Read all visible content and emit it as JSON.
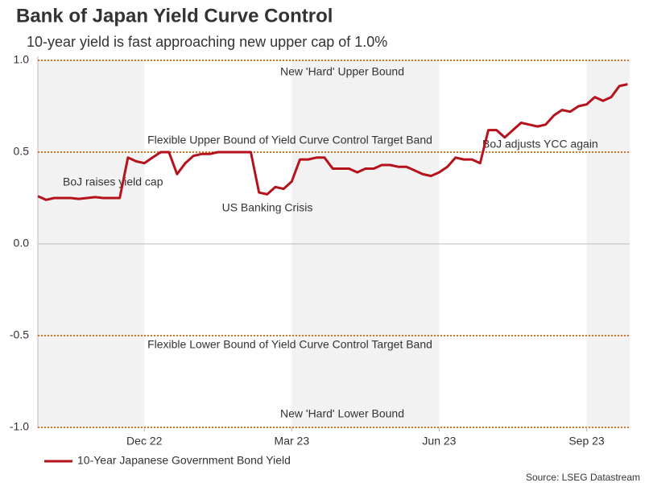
{
  "chart_data": {
    "type": "line",
    "title": "Bank of Japan Yield Curve Control",
    "subtitle": "10-year yield is fast approaching new upper cap of 1.0%",
    "source": "Source: LSEG Datastream",
    "categories": [
      null,
      null,
      null,
      null,
      null,
      null,
      null,
      null,
      null,
      null,
      null,
      null,
      null,
      "Dec 22",
      null,
      null,
      null,
      null,
      null,
      null,
      null,
      null,
      null,
      null,
      null,
      null,
      null,
      null,
      null,
      null,
      null,
      "Mar 23",
      null,
      null,
      null,
      null,
      null,
      null,
      null,
      null,
      null,
      null,
      null,
      null,
      null,
      null,
      null,
      null,
      null,
      "Jun 23",
      null,
      null,
      null,
      null,
      null,
      null,
      null,
      null,
      null,
      null,
      null,
      null,
      null,
      null,
      null,
      null,
      null,
      "Sep 23",
      null,
      null,
      null,
      null,
      null
    ],
    "series": [
      {
        "name": "10-Year Japanese Government Bond Yield",
        "color": "#b5121b",
        "values": [
          0.26,
          0.24,
          0.25,
          0.25,
          0.25,
          0.245,
          0.25,
          0.255,
          0.25,
          0.25,
          0.25,
          0.47,
          0.45,
          0.44,
          0.47,
          0.5,
          0.5,
          0.38,
          0.44,
          0.48,
          0.49,
          0.49,
          0.5,
          0.5,
          0.5,
          0.5,
          0.5,
          0.28,
          0.27,
          0.31,
          0.3,
          0.34,
          0.46,
          0.46,
          0.47,
          0.47,
          0.41,
          0.41,
          0.41,
          0.39,
          0.41,
          0.41,
          0.43,
          0.43,
          0.42,
          0.42,
          0.4,
          0.38,
          0.37,
          0.39,
          0.42,
          0.47,
          0.46,
          0.46,
          0.44,
          0.62,
          0.62,
          0.58,
          0.62,
          0.66,
          0.65,
          0.64,
          0.65,
          0.7,
          0.73,
          0.72,
          0.75,
          0.76,
          0.8,
          0.78,
          0.8,
          0.86,
          0.87
        ]
      }
    ],
    "ylim": [
      -1,
      1
    ],
    "yticks": [
      {
        "value": -1,
        "label": "-1.0"
      },
      -0.5,
      {
        "value": 0,
        "label": "0.0"
      },
      0.5,
      {
        "value": 1,
        "label": "1.0"
      }
    ],
    "reference_lines": [
      {
        "value": 1,
        "label": "New 'Hard' Upper Bound",
        "color": "#e07020"
      },
      {
        "value": 0.5,
        "label": "Flexible Upper Bound of Yield Curve Control Target Band",
        "color": "#e07020"
      },
      {
        "value": -0.5,
        "label": "Flexible Lower Bound of Yield Curve Control Target Band",
        "color": "#e07020"
      },
      {
        "value": -1,
        "label": "New 'Hard' Lower Bound",
        "color": "#e07020"
      }
    ],
    "annotations": [
      "BoJ raises yield cap",
      "US Banking Crisis",
      "BoJ adjusts YCC again"
    ],
    "shading_color": "#f2f2f2",
    "legend": "bottom-left"
  }
}
